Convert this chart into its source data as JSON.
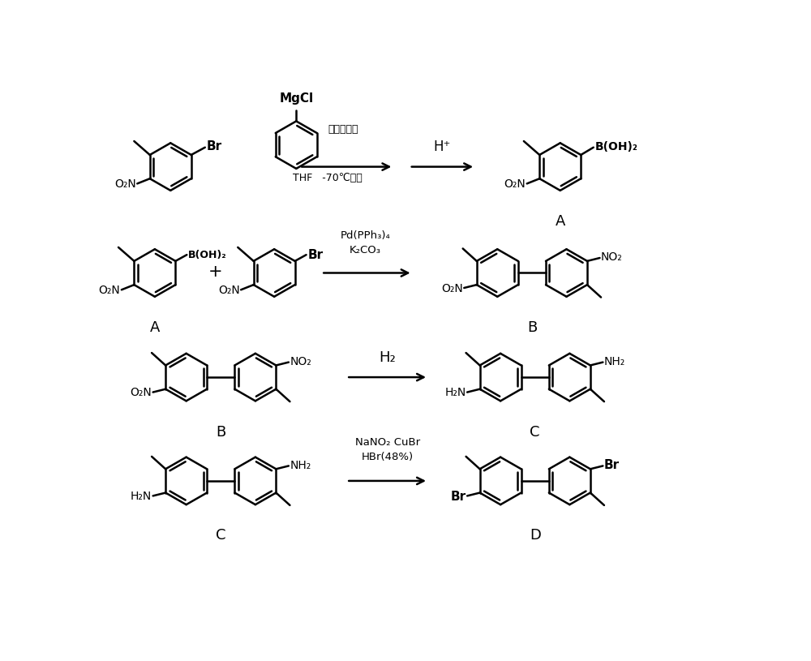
{
  "background_color": "#ffffff",
  "line_color": "#000000",
  "text_color": "#000000",
  "fig_width": 10.0,
  "fig_height": 8.15,
  "lw": 1.8,
  "ring_r": 0.38,
  "row1_reagent1": "硼酸三甲酯",
  "row1_reagent2": "THF   -70℃以下",
  "row1_arrow2_label": "H⁺",
  "row1_mgcl": "MgCl",
  "row1_br": "Br",
  "row1_boh2": "B(OH)₂",
  "row1_no2_a": "O₂N",
  "row1_no2_b": "O₂N",
  "row1_product_name": "A",
  "row2_reagent": "Pd(PPh₃)₄\nK₂CO₃",
  "row2_br": "Br",
  "row2_no2_1": "O₂N",
  "row2_no2_2": "O₂N",
  "row2_no2_3": "NO₂",
  "row2_boh2": "B(OH)₂",
  "row2_plus": "+",
  "row2_reactant_name": "A",
  "row2_product_name": "B",
  "row3_arrow_label": "H₂",
  "row3_no2_1": "O₂N",
  "row3_no2_2": "NO₂",
  "row3_nh2_1": "H₂N",
  "row3_nh2_2": "NH₂",
  "row3_reactant_name": "B",
  "row3_product_name": "C",
  "row4_arrow_label": "NaNO₂ CuBr\nHBr(48%)",
  "row4_nh2_1": "H₂N",
  "row4_nh2_2": "NH₂",
  "row4_br_1": "Br",
  "row4_br_2": "Br",
  "row4_reactant_name": "C",
  "row4_product_name": "D"
}
